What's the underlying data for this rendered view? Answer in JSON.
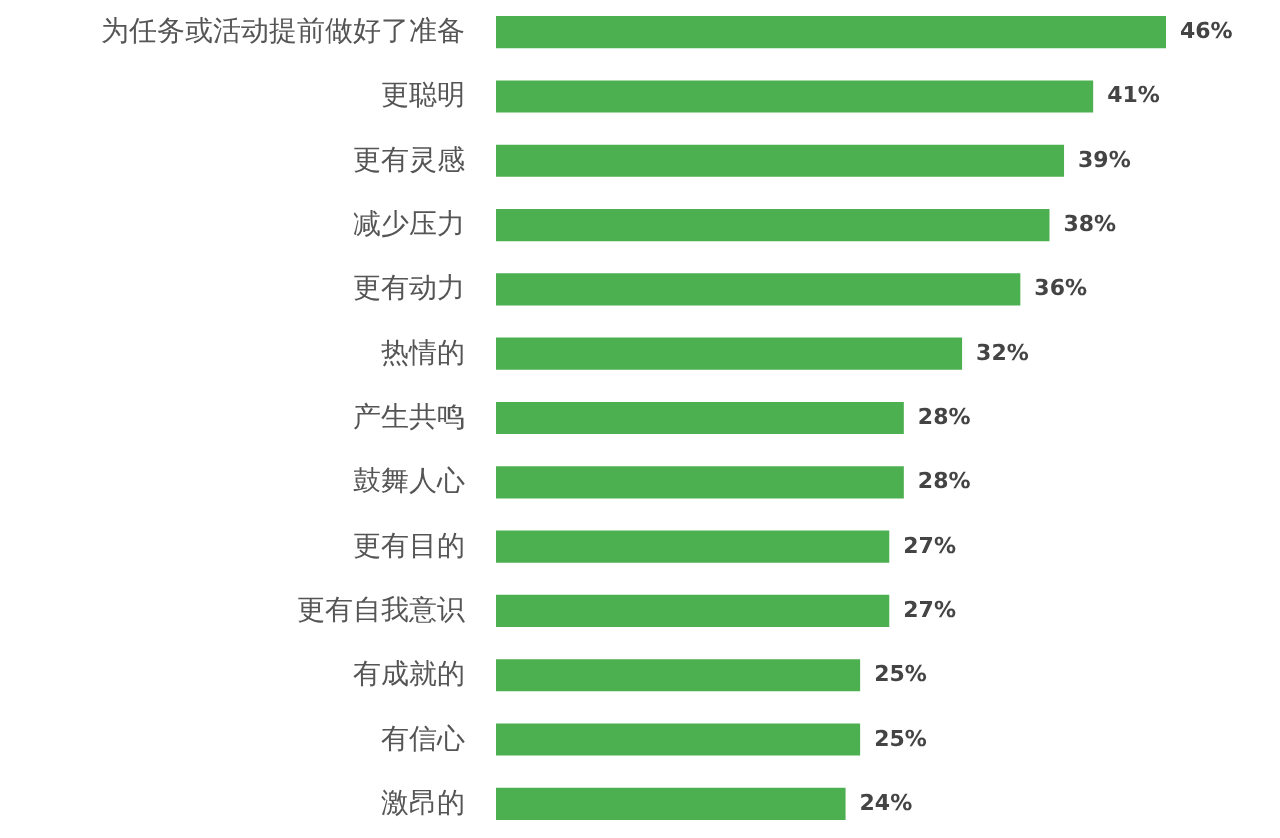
{
  "chart_data": {
    "type": "bar",
    "orientation": "horizontal",
    "categories": [
      "为任务或活动提前做好了准备",
      "更聪明",
      "更有灵感",
      "减少压力",
      "更有动力",
      "热情的",
      "产生共鸣",
      "鼓舞人心",
      "更有目的",
      "更有自我意识",
      "有成就的",
      "有信心",
      "激昂的"
    ],
    "values": [
      46,
      41,
      39,
      38,
      36,
      32,
      28,
      28,
      27,
      27,
      25,
      25,
      24
    ],
    "value_labels": [
      "46%",
      "41%",
      "39%",
      "38%",
      "36%",
      "32%",
      "28%",
      "28%",
      "27%",
      "27%",
      "25%",
      "25%",
      "24%"
    ],
    "color": "#4caf50"
  }
}
